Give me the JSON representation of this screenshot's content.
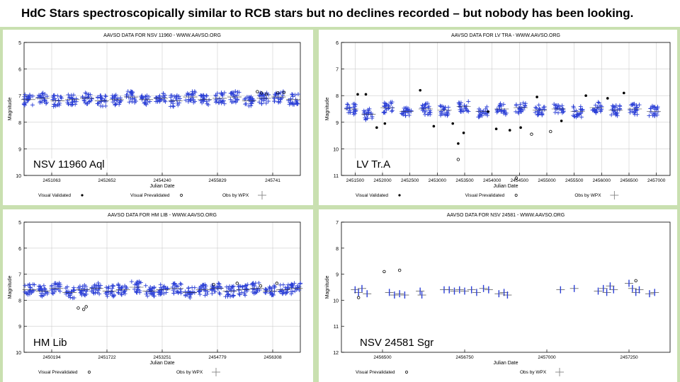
{
  "title": "HdC Stars spectroscopically similar to RCB stars but no declines recorded – but nobody has been looking.",
  "colors": {
    "frame": "#c9e0b0",
    "validated": "#2b3fd6",
    "prevalidated": "#000000"
  },
  "chart_data": [
    {
      "type": "scatter",
      "title": "AAVSO DATA FOR NSV 11960 - WWW.AAVSO.ORG",
      "star_label": "NSV 11960 Aql",
      "xlabel": "Julian Date",
      "ylabel": "Magnitude",
      "y_inverted": true,
      "xlim": [
        2450700,
        2457450
      ],
      "ylim": [
        5,
        10
      ],
      "x_ticks": [
        "2451063",
        "2452652",
        "2454240",
        "2455829",
        "245741"
      ],
      "y_ticks": [
        "5",
        "6",
        "7",
        "8",
        "9",
        "10"
      ],
      "grid": true,
      "legend": {
        "placement": "bottom",
        "entries": [
          "Visual Validated",
          "Visual Prevalidated",
          "Obs by WPX"
        ]
      },
      "series": [
        {
          "name": "Obs by WPX",
          "seasons": [
            {
              "x": 2450800,
              "y": 7.15
            },
            {
              "x": 2451150,
              "y": 7.1
            },
            {
              "x": 2451520,
              "y": 7.2
            },
            {
              "x": 2451880,
              "y": 7.15
            },
            {
              "x": 2452240,
              "y": 7.1
            },
            {
              "x": 2452600,
              "y": 7.2
            },
            {
              "x": 2452960,
              "y": 7.15
            },
            {
              "x": 2453320,
              "y": 7.05
            },
            {
              "x": 2453680,
              "y": 7.15
            },
            {
              "x": 2454040,
              "y": 7.1
            },
            {
              "x": 2454400,
              "y": 7.2
            },
            {
              "x": 2454760,
              "y": 7.05
            },
            {
              "x": 2455120,
              "y": 7.15
            },
            {
              "x": 2455480,
              "y": 7.1
            },
            {
              "x": 2455840,
              "y": 7.05
            },
            {
              "x": 2456200,
              "y": 7.2
            },
            {
              "x": 2456560,
              "y": 7.1
            },
            {
              "x": 2456920,
              "y": 7.05
            },
            {
              "x": 2457280,
              "y": 7.15
            }
          ]
        },
        {
          "name": "Visual Prevalidated",
          "points": [
            {
              "x": 2456400,
              "y": 6.85
            },
            {
              "x": 2456500,
              "y": 6.9
            },
            {
              "x": 2456620,
              "y": 6.95
            },
            {
              "x": 2456900,
              "y": 6.9
            },
            {
              "x": 2457050,
              "y": 6.88
            }
          ]
        }
      ]
    },
    {
      "type": "scatter",
      "title": "AAVSO DATA FOR LV TRA - WWW.AAVSO.ORG",
      "star_label": "LV Tr.A",
      "xlabel": "Julian Date",
      "ylabel": "Magnitude",
      "y_inverted": true,
      "xlim": [
        2451400,
        2457450
      ],
      "ylim": [
        6,
        11
      ],
      "x_ticks": [
        "2451500",
        "2452000",
        "2452500",
        "2453000",
        "2453500",
        "2454000",
        "2454500",
        "2455000",
        "2455500",
        "2456000",
        "2456500",
        "2457000"
      ],
      "y_ticks": [
        "6",
        "7",
        "8",
        "9",
        "10",
        "11"
      ],
      "grid": true,
      "legend": {
        "placement": "bottom",
        "entries": [
          "Visual Validated",
          "Visual Prevalidated",
          "Obs by WPX"
        ]
      },
      "series": [
        {
          "name": "Obs by WPX",
          "seasons": [
            {
              "x": 2451580,
              "y": 8.5
            },
            {
              "x": 2451900,
              "y": 8.7
            },
            {
              "x": 2452250,
              "y": 8.45
            },
            {
              "x": 2452600,
              "y": 8.6
            },
            {
              "x": 2452950,
              "y": 8.5
            },
            {
              "x": 2453300,
              "y": 8.55
            },
            {
              "x": 2453650,
              "y": 8.4
            },
            {
              "x": 2454000,
              "y": 8.6
            },
            {
              "x": 2454350,
              "y": 8.5
            },
            {
              "x": 2454700,
              "y": 8.45
            },
            {
              "x": 2455050,
              "y": 8.55
            },
            {
              "x": 2455400,
              "y": 8.5
            },
            {
              "x": 2455750,
              "y": 8.6
            },
            {
              "x": 2456100,
              "y": 8.45
            },
            {
              "x": 2456450,
              "y": 8.55
            },
            {
              "x": 2456800,
              "y": 8.5
            },
            {
              "x": 2457150,
              "y": 8.6
            }
          ]
        },
        {
          "name": "Visual Validated",
          "points": [
            {
              "x": 2451700,
              "y": 7.95
            },
            {
              "x": 2451850,
              "y": 7.95
            },
            {
              "x": 2452050,
              "y": 9.2
            },
            {
              "x": 2452200,
              "y": 9.05
            },
            {
              "x": 2452850,
              "y": 7.8
            },
            {
              "x": 2453100,
              "y": 9.15
            },
            {
              "x": 2453450,
              "y": 9.05
            },
            {
              "x": 2453550,
              "y": 9.8
            },
            {
              "x": 2453650,
              "y": 9.4
            },
            {
              "x": 2454100,
              "y": 8.6
            },
            {
              "x": 2454250,
              "y": 9.25
            },
            {
              "x": 2454500,
              "y": 9.3
            },
            {
              "x": 2454700,
              "y": 9.2
            },
            {
              "x": 2455000,
              "y": 8.05
            },
            {
              "x": 2455450,
              "y": 8.95
            },
            {
              "x": 2455900,
              "y": 8.0
            },
            {
              "x": 2456300,
              "y": 8.1
            },
            {
              "x": 2456600,
              "y": 7.9
            }
          ]
        },
        {
          "name": "Visual Prevalidated",
          "points": [
            {
              "x": 2453550,
              "y": 10.4
            },
            {
              "x": 2454620,
              "y": 11.1
            },
            {
              "x": 2454900,
              "y": 9.45
            },
            {
              "x": 2455250,
              "y": 9.35
            }
          ]
        }
      ]
    },
    {
      "type": "scatter",
      "title": "AAVSO DATA FOR HM LIB - WWW.AAVSO.ORG",
      "star_label": "HM Lib",
      "xlabel": "Julian Date",
      "ylabel": "Magnitude",
      "y_inverted": true,
      "xlim": [
        2449900,
        2457550
      ],
      "ylim": [
        5,
        10
      ],
      "x_ticks": [
        "2450194",
        "2451722",
        "2453251",
        "2454779",
        "2456308"
      ],
      "y_ticks": [
        "5",
        "6",
        "7",
        "8",
        "9",
        "10"
      ],
      "grid": true,
      "legend": {
        "placement": "bottom",
        "entries": [
          "Visual Prevalidated",
          "Obs by WPX"
        ]
      },
      "series": [
        {
          "name": "Obs by WPX",
          "seasons": [
            {
              "x": 2450050,
              "y": 7.6
            },
            {
              "x": 2450420,
              "y": 7.65
            },
            {
              "x": 2450790,
              "y": 7.55
            },
            {
              "x": 2451160,
              "y": 7.7
            },
            {
              "x": 2451530,
              "y": 7.6
            },
            {
              "x": 2451900,
              "y": 7.55
            },
            {
              "x": 2452270,
              "y": 7.65
            },
            {
              "x": 2452640,
              "y": 7.6
            },
            {
              "x": 2453010,
              "y": 7.5
            },
            {
              "x": 2453380,
              "y": 7.65
            },
            {
              "x": 2453750,
              "y": 7.6
            },
            {
              "x": 2454120,
              "y": 7.55
            },
            {
              "x": 2454490,
              "y": 7.7
            },
            {
              "x": 2454860,
              "y": 7.6
            },
            {
              "x": 2455230,
              "y": 7.55
            },
            {
              "x": 2455600,
              "y": 7.65
            },
            {
              "x": 2455970,
              "y": 7.6
            },
            {
              "x": 2456340,
              "y": 7.55
            },
            {
              "x": 2456710,
              "y": 7.65
            },
            {
              "x": 2457080,
              "y": 7.6
            },
            {
              "x": 2457420,
              "y": 7.55
            }
          ]
        },
        {
          "name": "Visual Prevalidated",
          "points": [
            {
              "x": 2451400,
              "y": 8.3
            },
            {
              "x": 2451550,
              "y": 8.35
            },
            {
              "x": 2451620,
              "y": 8.25
            },
            {
              "x": 2455150,
              "y": 7.4
            },
            {
              "x": 2455800,
              "y": 7.35
            },
            {
              "x": 2456450,
              "y": 7.45
            },
            {
              "x": 2456900,
              "y": 7.35
            }
          ]
        }
      ]
    },
    {
      "type": "scatter",
      "title": "AAVSO DATA FOR NSV 24581 - WWW.AAVSO.ORG",
      "star_label": "NSV 24581 Sgr",
      "xlabel": "Julian Date",
      "ylabel": "Magnitude",
      "y_inverted": true,
      "xlim": [
        2456420,
        2457380
      ],
      "ylim": [
        7,
        12
      ],
      "x_ticks": [
        "2456500",
        "2456750",
        "2457000",
        "2457250"
      ],
      "y_ticks": [
        "7",
        "8",
        "9",
        "10",
        "11",
        "12"
      ],
      "grid": false,
      "legend": {
        "placement": "bottom",
        "entries": [
          "Visual Prevalidated",
          "Obs by WPX"
        ]
      },
      "series": [
        {
          "name": "Obs by WPX",
          "points": [
            {
              "x": 2456460,
              "y": 9.6
            },
            {
              "x": 2456470,
              "y": 9.7
            },
            {
              "x": 2456480,
              "y": 9.55
            },
            {
              "x": 2456495,
              "y": 9.75
            },
            {
              "x": 2456560,
              "y": 9.7
            },
            {
              "x": 2456575,
              "y": 9.8
            },
            {
              "x": 2456590,
              "y": 9.75
            },
            {
              "x": 2456605,
              "y": 9.8
            },
            {
              "x": 2456650,
              "y": 9.65
            },
            {
              "x": 2456655,
              "y": 9.8
            },
            {
              "x": 2456720,
              "y": 9.6
            },
            {
              "x": 2456735,
              "y": 9.6
            },
            {
              "x": 2456750,
              "y": 9.65
            },
            {
              "x": 2456765,
              "y": 9.6
            },
            {
              "x": 2456780,
              "y": 9.65
            },
            {
              "x": 2456800,
              "y": 9.6
            },
            {
              "x": 2456815,
              "y": 9.7
            },
            {
              "x": 2456835,
              "y": 9.55
            },
            {
              "x": 2456850,
              "y": 9.6
            },
            {
              "x": 2456880,
              "y": 9.75
            },
            {
              "x": 2456895,
              "y": 9.7
            },
            {
              "x": 2456905,
              "y": 9.8
            },
            {
              "x": 2457060,
              "y": 9.6
            },
            {
              "x": 2457100,
              "y": 9.55
            },
            {
              "x": 2457170,
              "y": 9.65
            },
            {
              "x": 2457185,
              "y": 9.55
            },
            {
              "x": 2457195,
              "y": 9.7
            },
            {
              "x": 2457205,
              "y": 9.45
            },
            {
              "x": 2457215,
              "y": 9.6
            },
            {
              "x": 2457260,
              "y": 9.35
            },
            {
              "x": 2457270,
              "y": 9.55
            },
            {
              "x": 2457280,
              "y": 9.7
            },
            {
              "x": 2457290,
              "y": 9.6
            },
            {
              "x": 2457320,
              "y": 9.75
            },
            {
              "x": 2457335,
              "y": 9.7
            }
          ]
        },
        {
          "name": "Visual Prevalidated",
          "points": [
            {
              "x": 2456545,
              "y": 8.9
            },
            {
              "x": 2456590,
              "y": 8.85
            },
            {
              "x": 2456470,
              "y": 9.9
            },
            {
              "x": 2457280,
              "y": 9.25
            }
          ]
        }
      ]
    }
  ]
}
